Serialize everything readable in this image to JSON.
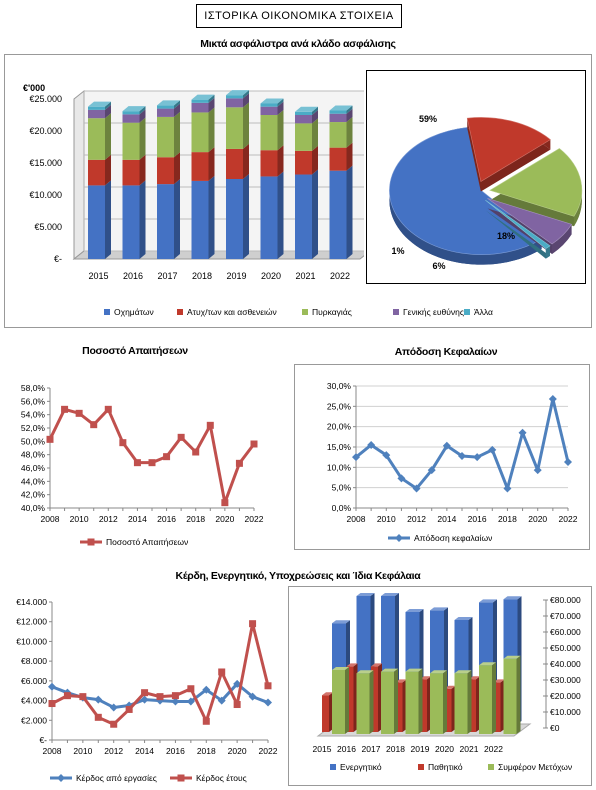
{
  "header": {
    "title": "ΙΣΤΟΡΙΚΑ ΟΙΚΟΝΟΜΙΚΑ ΣΤΟΙΧΕΙΑ"
  },
  "colors": {
    "blue": "#4472C4",
    "red": "#C0392B",
    "green": "#9BBB59",
    "purple": "#8064A2",
    "teal": "#4BACC6",
    "line_red": "#C0504D",
    "line_blue": "#4F81BD"
  },
  "chart_data": [
    {
      "id": "premiums",
      "type": "bar",
      "stacked": true,
      "title": "Μικτά ασφάλιστρα ανά κλάδο ασφάλισης",
      "unit_label": "€'000",
      "categories": [
        "2015",
        "2016",
        "2017",
        "2018",
        "2019",
        "2020",
        "2021",
        "2022"
      ],
      "series": [
        {
          "name": "Οχημάτων",
          "values": [
            11500,
            11500,
            11700,
            12200,
            12500,
            12900,
            13200,
            13800
          ]
        },
        {
          "name": "Ατυχ/των και ασθενειών",
          "values": [
            4000,
            4000,
            4200,
            4500,
            4700,
            4100,
            3700,
            3600
          ]
        },
        {
          "name": "Πυρκαγιάς",
          "values": [
            6500,
            5800,
            6300,
            6200,
            6500,
            5500,
            4300,
            4000
          ]
        },
        {
          "name": "Γενικής ευθύνης",
          "values": [
            1300,
            1300,
            1300,
            1500,
            1400,
            1300,
            1300,
            1300
          ]
        },
        {
          "name": "Άλλα",
          "values": [
            500,
            500,
            500,
            500,
            500,
            500,
            500,
            500
          ]
        }
      ],
      "yticks": [
        "€-",
        "€5.000",
        "€10.000",
        "€15.000",
        "€20.000",
        "€25.000"
      ],
      "ylim": [
        0,
        25000
      ],
      "legend": "bottom"
    },
    {
      "id": "premiums_pie",
      "type": "pie",
      "slices": [
        {
          "label": "59%",
          "value": 59
        },
        {
          "label": "16%",
          "value": 16
        },
        {
          "label": "18%",
          "value": 18
        },
        {
          "label": "6%",
          "value": 6
        },
        {
          "label": "1%",
          "value": 1
        }
      ]
    },
    {
      "id": "claims_ratio",
      "type": "line",
      "title": "Ποσοστό Απαιτήσεων",
      "x": [
        "2008",
        "2009",
        "2010",
        "2011",
        "2012",
        "2013",
        "2014",
        "2015",
        "2016",
        "2017",
        "2018",
        "2019",
        "2020",
        "2021",
        "2022"
      ],
      "xticks": [
        "2008",
        "2010",
        "2012",
        "2014",
        "2016",
        "2018",
        "2020",
        "2022"
      ],
      "series": [
        {
          "name": "Ποσοστό Απαιτήσεων",
          "values": [
            50.3,
            54.8,
            54.2,
            52.5,
            54.8,
            49.8,
            46.8,
            46.8,
            47.7,
            50.6,
            48.4,
            52.4,
            40.8,
            46.7,
            49.6
          ]
        }
      ],
      "yticks": [
        "40,0%",
        "42,0%",
        "44,0%",
        "46,0%",
        "48,0%",
        "50,0%",
        "52,0%",
        "54,0%",
        "56,0%",
        "58,0%"
      ],
      "ylim": [
        40,
        58
      ],
      "legend": "bottom"
    },
    {
      "id": "return_on_capital",
      "type": "line",
      "title": "Απόδοση Κεφαλαίων",
      "x": [
        "2008",
        "2009",
        "2010",
        "2011",
        "2012",
        "2013",
        "2014",
        "2015",
        "2016",
        "2017",
        "2018",
        "2019",
        "2020",
        "2021",
        "2022"
      ],
      "xticks": [
        "2008",
        "2010",
        "2012",
        "2014",
        "2016",
        "2018",
        "2020",
        "2022"
      ],
      "series": [
        {
          "name": "Απόδοση κεφαλαίων",
          "values": [
            12.5,
            15.5,
            13.0,
            7.3,
            4.8,
            9.3,
            15.3,
            12.8,
            12.5,
            14.3,
            4.8,
            18.5,
            9.3,
            26.8,
            11.3
          ]
        }
      ],
      "yticks": [
        "0,0%",
        "5,0%",
        "10,0%",
        "15,0%",
        "20,0%",
        "25,0%",
        "30,0%"
      ],
      "ylim": [
        0,
        30
      ],
      "legend": "bottom"
    },
    {
      "id": "profits",
      "type": "line",
      "x": [
        "2008",
        "2009",
        "2010",
        "2011",
        "2012",
        "2013",
        "2014",
        "2015",
        "2016",
        "2017",
        "2018",
        "2019",
        "2020",
        "2021",
        "2022"
      ],
      "xticks": [
        "2008",
        "2010",
        "2012",
        "2014",
        "2016",
        "2018",
        "2020",
        "2022"
      ],
      "series": [
        {
          "name": "Κέρδος από εργασίες",
          "values": [
            5400,
            4800,
            4300,
            4100,
            3300,
            3500,
            4100,
            4000,
            3900,
            3900,
            5100,
            4000,
            5700,
            4400,
            3800
          ]
        },
        {
          "name": "Κέρδος έτους",
          "values": [
            3700,
            4500,
            4400,
            2300,
            1600,
            3100,
            4800,
            4400,
            4500,
            5200,
            1900,
            6900,
            3600,
            11800,
            5500
          ]
        }
      ],
      "yticks": [
        "€-",
        "€2.000",
        "€4.000",
        "€6.000",
        "€8.000",
        "€10.000",
        "€12.000",
        "€14.000"
      ],
      "ylim": [
        0,
        14000
      ],
      "legend": "bottom"
    },
    {
      "id": "balance",
      "type": "bar",
      "categories": [
        "2015",
        "2016",
        "2017",
        "2018",
        "2019",
        "2020",
        "2021",
        "2022"
      ],
      "series": [
        {
          "name": "Ενεργητικό",
          "values": [
            63000,
            80000,
            80000,
            70000,
            71000,
            65000,
            76000,
            78000
          ]
        },
        {
          "name": "Παθητικό",
          "values": [
            23000,
            41000,
            41000,
            31000,
            33000,
            27000,
            33000,
            31000
          ]
        },
        {
          "name": "Συμφέρον Μετόχων",
          "values": [
            40000,
            38000,
            39000,
            39000,
            38000,
            38000,
            43000,
            47000
          ]
        }
      ],
      "yticks": [
        "€0",
        "€10.000",
        "€20.000",
        "€30.000",
        "€40.000",
        "€50.000",
        "€60.000",
        "€70.000",
        "€80.000"
      ],
      "ylim": [
        0,
        80000
      ],
      "legend": "bottom"
    }
  ],
  "titles": {
    "premiums": "Μικτά ασφάλιστρα ανά κλάδο ασφάλισης",
    "claims": "Ποσοστό Απαιτήσεων",
    "return": "Απόδοση Κεφαλαίων",
    "profits": "Κέρδη, Ενεργητικό, Υποχρεώσεις και Ίδια Κεφάλαια"
  }
}
